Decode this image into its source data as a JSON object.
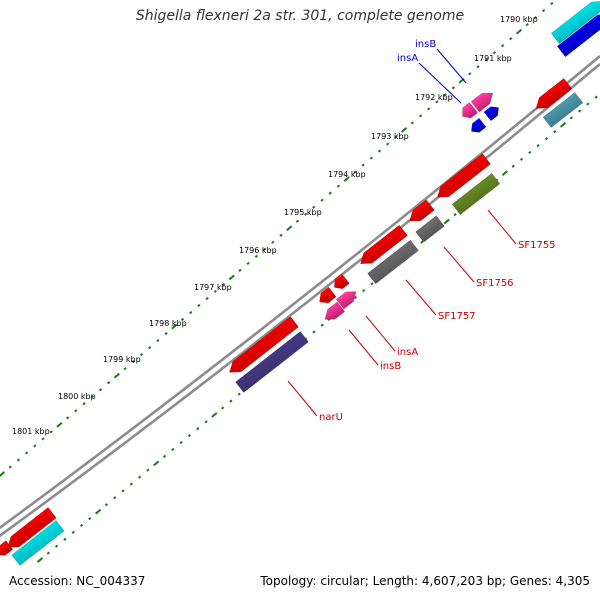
{
  "title": "Shigella flexneri 2a str. 301, complete genome",
  "footer": {
    "accession": "Accession: NC_004337",
    "summary": "Topology: circular; Length: 4,607,203 bp; Genes: 4,305"
  },
  "colors": {
    "backbone": "#808080",
    "tick": "#1a7a1a",
    "red": "#ff0000",
    "pink": "#ff3399",
    "blue": "#0000ee",
    "cyan": "#00e5ee",
    "gray": "#6e6e6e",
    "olive": "#6b8e23",
    "navy": "#483d8b",
    "steel": "#4f9fb5",
    "label_blue": "#0000cc",
    "label_red": "#cc0000"
  },
  "kbp_ticks": [
    "1790 kbp",
    "1791 kbp",
    "1792 kbp",
    "1793 kbp",
    "1794 kbp",
    "1795 kbp",
    "1796 kbp",
    "1797 kbp",
    "1798 kbp",
    "1799 kbp",
    "1800 kbp",
    "1801 kbp"
  ],
  "gene_labels": [
    {
      "name": "insB",
      "color": "blue"
    },
    {
      "name": "insA",
      "color": "blue"
    },
    {
      "name": "SF1755",
      "color": "red"
    },
    {
      "name": "SF1756",
      "color": "red"
    },
    {
      "name": "SF1757",
      "color": "red"
    },
    {
      "name": "insA",
      "color": "red"
    },
    {
      "name": "insB",
      "color": "red"
    },
    {
      "name": "narU",
      "color": "red"
    }
  ]
}
